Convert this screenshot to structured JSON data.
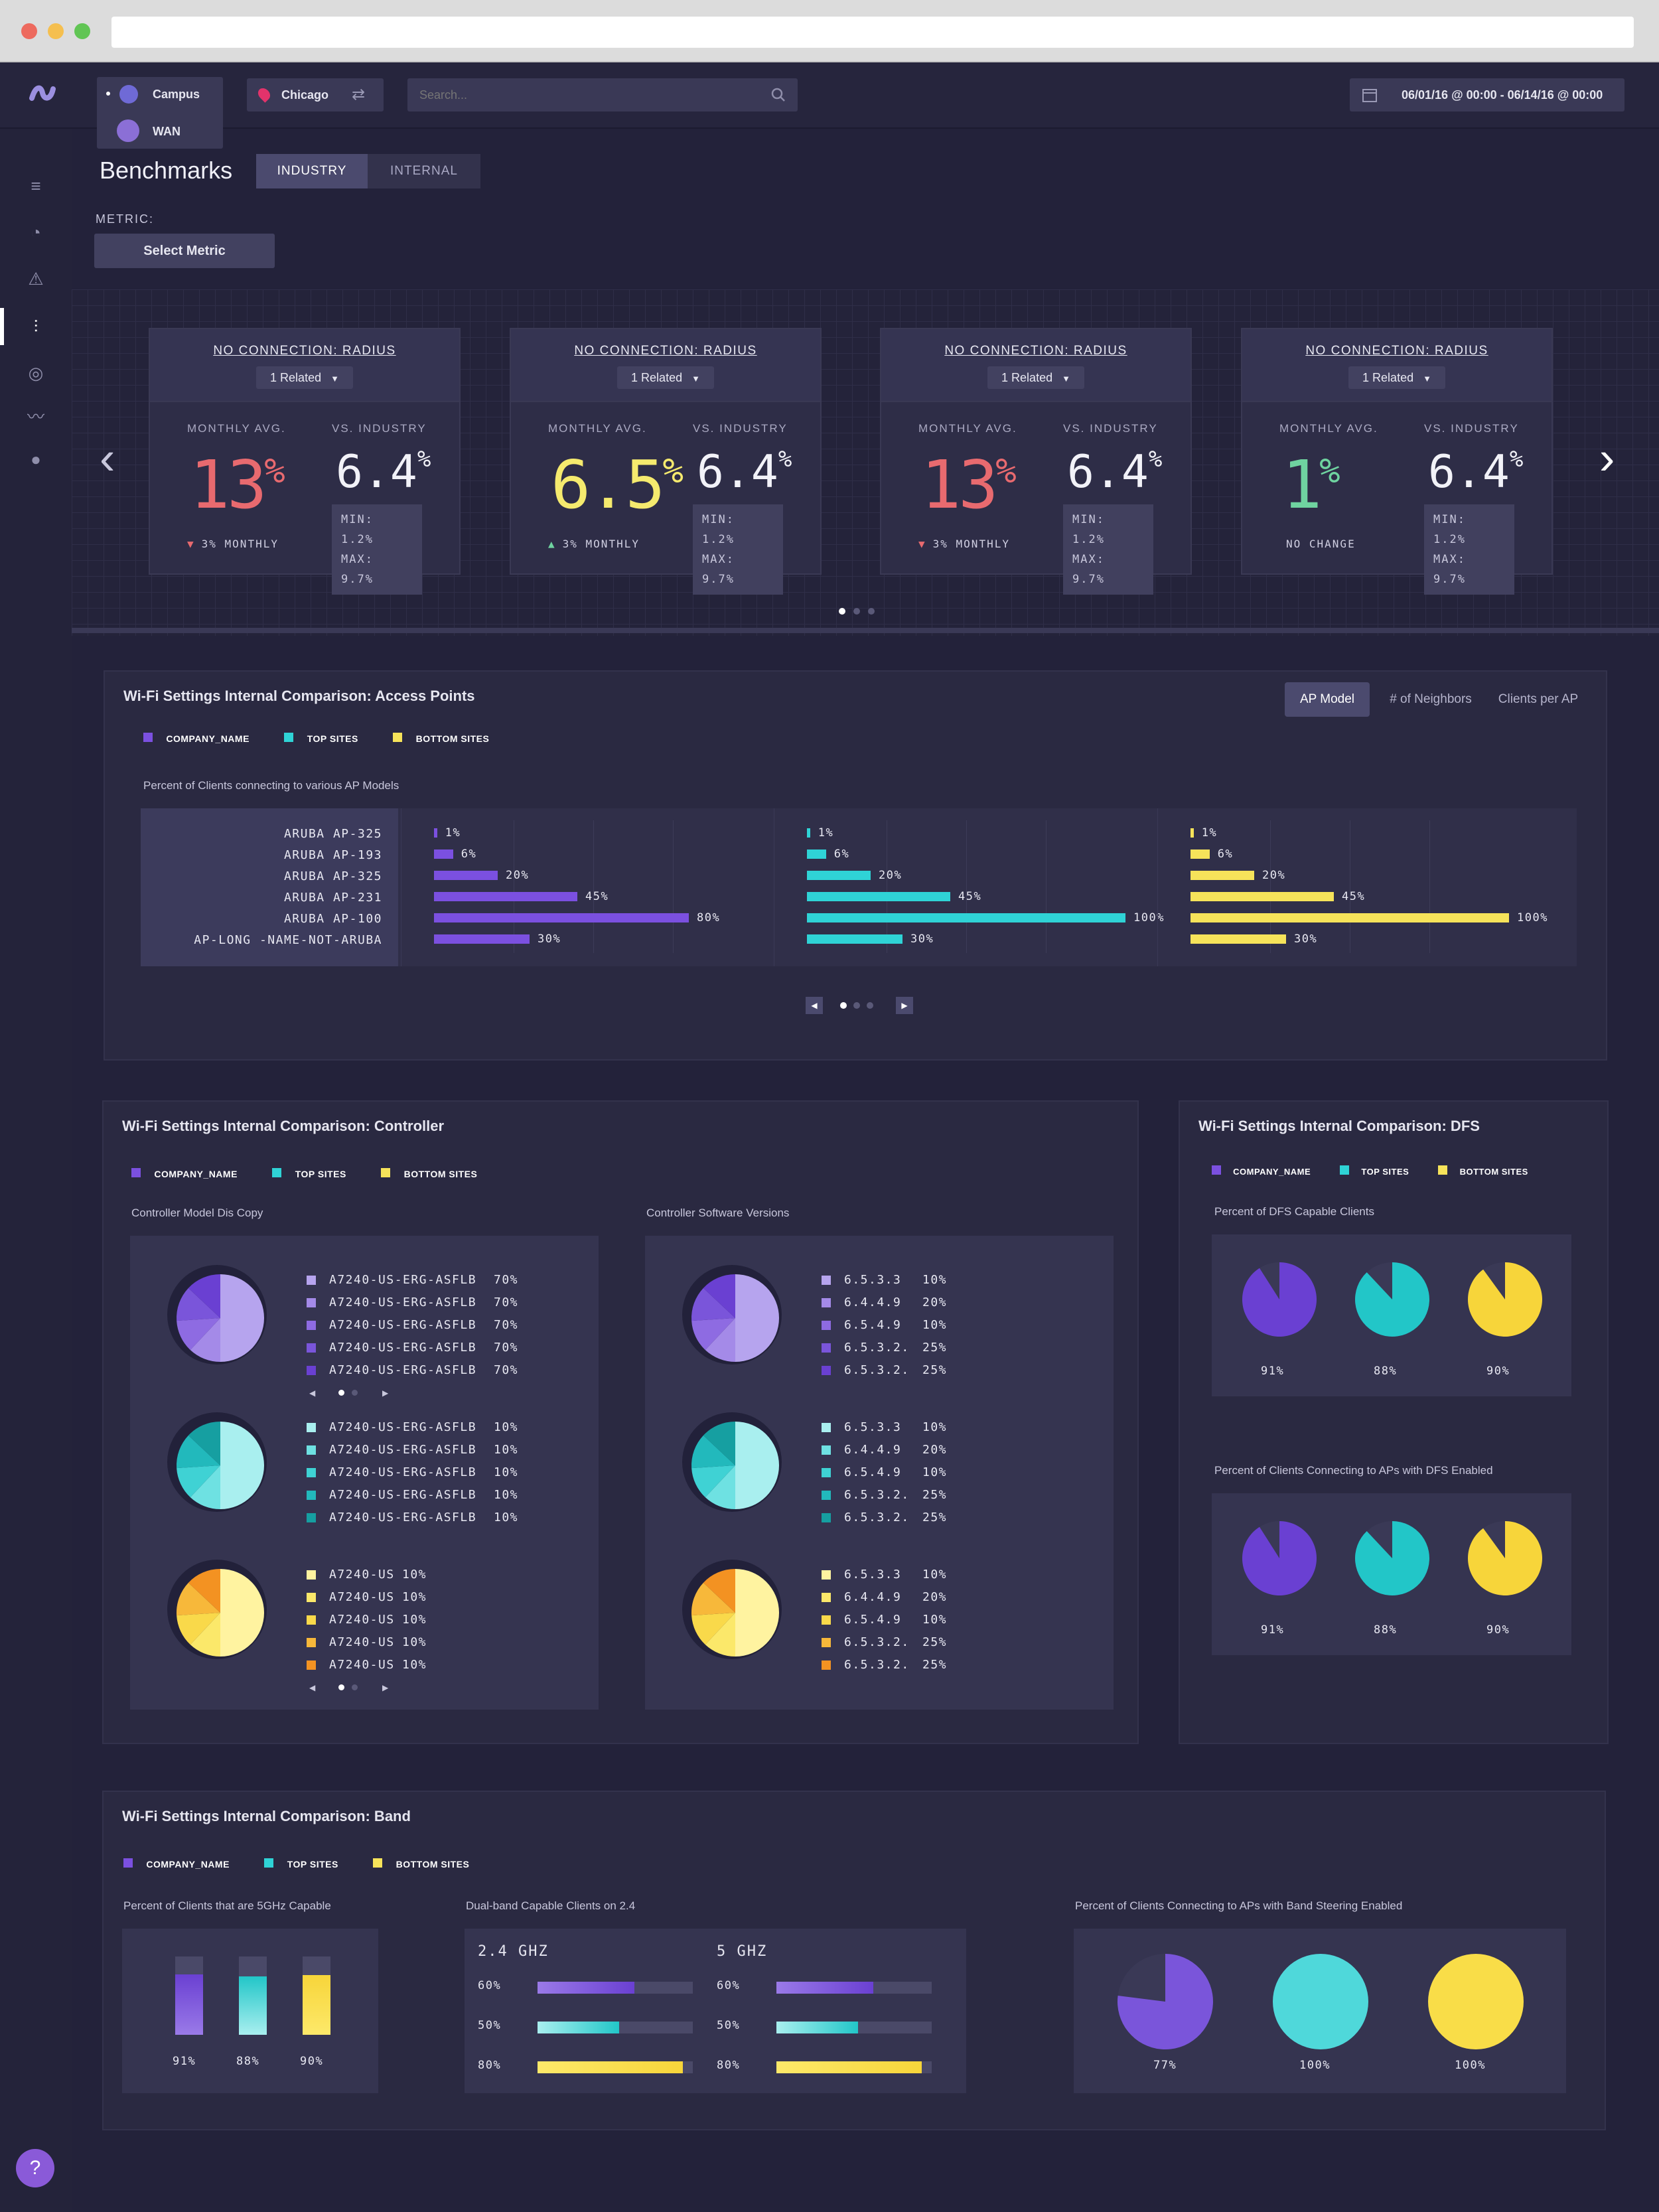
{
  "topbar": {
    "scope_items": [
      "Campus",
      "WAN"
    ],
    "location": "Chicago",
    "search_placeholder": "Search...",
    "date_range": "06/01/16 @ 00:00 - 06/14/16 @ 00:00"
  },
  "header": {
    "title": "Benchmarks",
    "tabs": [
      "INDUSTRY",
      "INTERNAL"
    ],
    "metric_label": "METRIC:",
    "select_metric": "Select Metric"
  },
  "cards": [
    {
      "title": "NO CONNECTION: RADIUS",
      "related": "1 Related",
      "avg_label": "MONTHLY AVG.",
      "vs_label": "VS. INDUSTRY",
      "avg": "13",
      "avg_color": "#e86a6f",
      "industry": "6.4",
      "trend": "3% MONTHLY",
      "trend_dir": "down",
      "min": "MIN: 1.2%",
      "max": "MAX: 9.7%"
    },
    {
      "title": "NO CONNECTION: RADIUS",
      "related": "1 Related",
      "avg_label": "MONTHLY AVG.",
      "vs_label": "VS. INDUSTRY",
      "avg": "6.5",
      "avg_color": "#f5ea6e",
      "industry": "6.4",
      "trend": "3% MONTHLY",
      "trend_dir": "up",
      "min": "MIN: 1.2%",
      "max": "MAX: 9.7%"
    },
    {
      "title": "NO CONNECTION: RADIUS",
      "related": "1 Related",
      "avg_label": "MONTHLY AVG.",
      "vs_label": "VS. INDUSTRY",
      "avg": "13",
      "avg_color": "#e86a6f",
      "industry": "6.4",
      "trend": "3% MONTHLY",
      "trend_dir": "down",
      "min": "MIN: 1.2%",
      "max": "MAX: 9.7%"
    },
    {
      "title": "NO CONNECTION: RADIUS",
      "related": "1 Related",
      "avg_label": "MONTHLY AVG.",
      "vs_label": "VS. INDUSTRY",
      "avg": "1",
      "avg_color": "#6fd3a0",
      "industry": "6.4",
      "trend": "NO CHANGE",
      "trend_dir": "none",
      "min": "MIN: 1.2%",
      "max": "MAX: 9.7%"
    }
  ],
  "legend": {
    "company": "COMPANY_NAME",
    "top": "TOP SITES",
    "bottom": "BOTTOM SITES"
  },
  "colors": {
    "company": "#7b50e0",
    "top": "#2fd3d6",
    "bottom": "#f6e35a",
    "accent": "#4b4a6e"
  },
  "ap_section": {
    "title": "Wi-Fi Settings Internal Comparison: Access Points",
    "tabs": [
      "AP Model",
      "# of Neighbors",
      "Clients per AP"
    ],
    "subtitle": "Percent of Clients connecting to various AP Models",
    "models": [
      "ARUBA AP-325",
      "ARUBA AP-193",
      "ARUBA AP-325",
      "ARUBA AP-231",
      "ARUBA AP-100",
      "AP-LONG -NAME-NOT-ARUBA"
    ]
  },
  "chart_data": [
    {
      "type": "bar",
      "title": "Percent of Clients connecting to various AP Models",
      "categories": [
        "ARUBA AP-325",
        "ARUBA AP-193",
        "ARUBA AP-325",
        "ARUBA AP-231",
        "ARUBA AP-100",
        "AP-LONG -NAME-NOT-ARUBA"
      ],
      "series": [
        {
          "name": "COMPANY_NAME",
          "values": [
            1,
            6,
            20,
            45,
            80,
            30
          ]
        },
        {
          "name": "TOP SITES",
          "values": [
            1,
            6,
            20,
            45,
            100,
            30
          ]
        },
        {
          "name": "BOTTOM SITES",
          "values": [
            1,
            6,
            20,
            45,
            100,
            30
          ]
        }
      ],
      "value_labels": [
        "1%",
        "6%",
        "20%",
        "45%",
        "80%",
        "30%",
        "1%",
        "6%",
        "20%",
        "45%",
        "100%",
        "30%",
        "1%",
        "6%",
        "20%",
        "45%",
        "100%",
        "30%"
      ]
    },
    {
      "type": "pie",
      "title": "Percent of DFS Capable Clients",
      "series": [
        {
          "name": "COMPANY_NAME",
          "values": [
            91
          ]
        },
        {
          "name": "TOP SITES",
          "values": [
            88
          ]
        },
        {
          "name": "BOTTOM SITES",
          "values": [
            90
          ]
        }
      ]
    },
    {
      "type": "pie",
      "title": "Percent of Clients Connecting to APs with DFS Enabled",
      "series": [
        {
          "name": "COMPANY_NAME",
          "values": [
            91
          ]
        },
        {
          "name": "TOP SITES",
          "values": [
            88
          ]
        },
        {
          "name": "BOTTOM SITES",
          "values": [
            90
          ]
        }
      ]
    },
    {
      "type": "bar",
      "title": "Percent of Clients that are 5GHz Capable",
      "series": [
        {
          "name": "COMPANY_NAME",
          "values": [
            91
          ]
        },
        {
          "name": "TOP SITES",
          "values": [
            88
          ]
        },
        {
          "name": "BOTTOM SITES",
          "values": [
            90
          ]
        }
      ]
    },
    {
      "type": "bar",
      "title": "Dual-band Capable Clients on 2.4",
      "categories": [
        "2.4 GHZ",
        "5 GHZ"
      ],
      "series": [
        {
          "name": "COMPANY_NAME",
          "values": [
            60,
            60
          ]
        },
        {
          "name": "TOP SITES",
          "values": [
            50,
            50
          ]
        },
        {
          "name": "BOTTOM SITES",
          "values": [
            80,
            80
          ]
        }
      ]
    },
    {
      "type": "pie",
      "title": "Percent of Clients Connecting to APs with Band Steering Enabled",
      "series": [
        {
          "name": "COMPANY_NAME",
          "values": [
            77
          ]
        },
        {
          "name": "TOP SITES",
          "values": [
            100
          ]
        },
        {
          "name": "BOTTOM SITES",
          "values": [
            100
          ]
        }
      ]
    }
  ],
  "controller": {
    "title": "Wi-Fi Settings Internal Comparison: Controller",
    "model_title": "Controller Model Dis Copy",
    "software_title": "Controller Software Versions",
    "model_groups": [
      {
        "items": [
          "A7240-US-ERG-ASFLB",
          "A7240-US-ERG-ASFLB",
          "A7240-US-ERG-ASFLB",
          "A7240-US-ERG-ASFLB",
          "A7240-US-ERG-ASFLB"
        ],
        "pcts": [
          "70%",
          "70%",
          "70%",
          "70%",
          "70%"
        ]
      },
      {
        "items": [
          "A7240-US-ERG-ASFLB",
          "A7240-US-ERG-ASFLB",
          "A7240-US-ERG-ASFLB",
          "A7240-US-ERG-ASFLB",
          "A7240-US-ERG-ASFLB"
        ],
        "pcts": [
          "10%",
          "10%",
          "10%",
          "10%",
          "10%"
        ]
      },
      {
        "items": [
          "A7240-US",
          "A7240-US",
          "A7240-US",
          "A7240-US",
          "A7240-US"
        ],
        "pcts": [
          "10%",
          "10%",
          "10%",
          "10%",
          "10%"
        ]
      }
    ],
    "software_groups": [
      {
        "items": [
          "6.5.3.3",
          "6.4.4.9",
          "6.5.4.9",
          "6.5.3.2.",
          "6.5.3.2."
        ],
        "pcts": [
          "10%",
          "20%",
          "10%",
          "25%",
          "25%"
        ]
      },
      {
        "items": [
          "6.5.3.3",
          "6.4.4.9",
          "6.5.4.9",
          "6.5.3.2.",
          "6.5.3.2."
        ],
        "pcts": [
          "10%",
          "20%",
          "10%",
          "25%",
          "25%"
        ]
      },
      {
        "items": [
          "6.5.3.3",
          "6.4.4.9",
          "6.5.4.9",
          "6.5.3.2.",
          "6.5.3.2."
        ],
        "pcts": [
          "10%",
          "20%",
          "10%",
          "25%",
          "25%"
        ]
      }
    ]
  },
  "dfs": {
    "title": "Wi-Fi Settings Internal Comparison: DFS",
    "sub1": "Percent of DFS Capable Clients",
    "sub2": "Percent of Clients Connecting to APs with DFS Enabled",
    "labels1": [
      "91%",
      "88%",
      "90%"
    ],
    "labels2": [
      "91%",
      "88%",
      "90%"
    ]
  },
  "band": {
    "title": "Wi-Fi Settings Internal Comparison: Band",
    "sub1": "Percent of Clients that are 5GHz Capable",
    "sub2": "Dual-band Capable Clients on 2.4",
    "sub3": "Percent of Clients Connecting to APs with Band Steering Enabled",
    "ghz24": "2.4 GHZ",
    "ghz5": "5 GHZ",
    "capable_labels": [
      "91%",
      "88%",
      "90%"
    ],
    "dual_labels": [
      "60%",
      "50%",
      "80%"
    ],
    "steer_labels": [
      "77%",
      "100%",
      "100%"
    ]
  }
}
